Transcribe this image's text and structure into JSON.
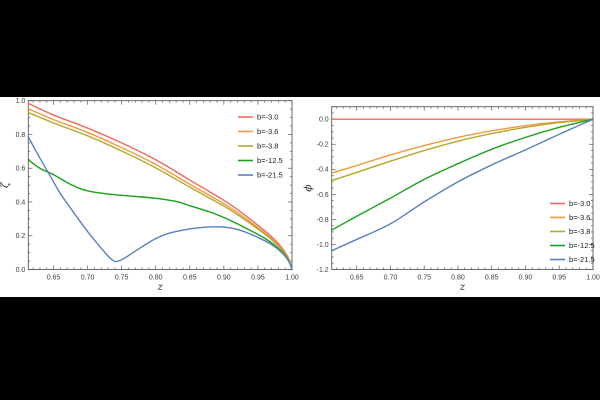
{
  "page": {
    "background_color": "#000000",
    "panel_background_color": "#ffffff"
  },
  "chart_data": [
    {
      "type": "line",
      "title": "",
      "xlabel": "z",
      "ylabel": "ζ",
      "xlim": [
        0.613,
        1.0
      ],
      "ylim": [
        0.0,
        1.0
      ],
      "grid": false,
      "frame": true,
      "xticks": {
        "values": [
          0.65,
          0.7,
          0.75,
          0.8,
          0.85,
          0.9,
          0.95,
          1.0
        ],
        "labels": [
          "0.65",
          "0.70",
          "0.75",
          "0.80",
          "0.85",
          "0.90",
          "0.95",
          "1.00"
        ],
        "minor_step": 0.01
      },
      "yticks": {
        "values": [
          0.0,
          0.2,
          0.4,
          0.6,
          0.8,
          1.0
        ],
        "labels": [
          "0.0",
          "0.2",
          "0.4",
          "0.6",
          "0.8",
          "1.0"
        ],
        "minor_step": 0.05
      },
      "legend_position": "top-right",
      "series": [
        {
          "name": "b=-3.0",
          "color": "#ee6a5f",
          "points": [
            [
              0.613,
              0.985
            ],
            [
              0.65,
              0.915
            ],
            [
              0.7,
              0.838
            ],
            [
              0.75,
              0.75
            ],
            [
              0.8,
              0.65
            ],
            [
              0.85,
              0.53
            ],
            [
              0.9,
              0.41
            ],
            [
              0.92,
              0.355
            ],
            [
              0.95,
              0.262
            ],
            [
              0.97,
              0.195
            ],
            [
              0.985,
              0.13
            ],
            [
              0.995,
              0.065
            ],
            [
              1.0,
              0.0
            ]
          ]
        },
        {
          "name": "b=-3.6",
          "color": "#f2993f",
          "points": [
            [
              0.613,
              0.952
            ],
            [
              0.65,
              0.888
            ],
            [
              0.7,
              0.812
            ],
            [
              0.75,
              0.722
            ],
            [
              0.8,
              0.622
            ],
            [
              0.85,
              0.505
            ],
            [
              0.9,
              0.39
            ],
            [
              0.92,
              0.337
            ],
            [
              0.95,
              0.248
            ],
            [
              0.97,
              0.183
            ],
            [
              0.985,
              0.12
            ],
            [
              0.995,
              0.06
            ],
            [
              1.0,
              0.0
            ]
          ]
        },
        {
          "name": "b=-3.8",
          "color": "#b4a82e",
          "points": [
            [
              0.613,
              0.93
            ],
            [
              0.65,
              0.868
            ],
            [
              0.7,
              0.792
            ],
            [
              0.75,
              0.702
            ],
            [
              0.8,
              0.602
            ],
            [
              0.85,
              0.488
            ],
            [
              0.9,
              0.376
            ],
            [
              0.92,
              0.325
            ],
            [
              0.95,
              0.24
            ],
            [
              0.97,
              0.177
            ],
            [
              0.985,
              0.115
            ],
            [
              0.995,
              0.058
            ],
            [
              1.0,
              0.0
            ]
          ]
        },
        {
          "name": "b=-12.5",
          "color": "#18a018",
          "points": [
            [
              0.613,
              0.65
            ],
            [
              0.63,
              0.6
            ],
            [
              0.65,
              0.562
            ],
            [
              0.67,
              0.515
            ],
            [
              0.69,
              0.478
            ],
            [
              0.71,
              0.458
            ],
            [
              0.74,
              0.443
            ],
            [
              0.77,
              0.433
            ],
            [
              0.8,
              0.422
            ],
            [
              0.83,
              0.403
            ],
            [
              0.85,
              0.378
            ],
            [
              0.88,
              0.34
            ],
            [
              0.9,
              0.308
            ],
            [
              0.92,
              0.27
            ],
            [
              0.95,
              0.208
            ],
            [
              0.97,
              0.158
            ],
            [
              0.985,
              0.105
            ],
            [
              0.995,
              0.052
            ],
            [
              1.0,
              0.0
            ]
          ]
        },
        {
          "name": "b=-21.5",
          "color": "#5c7fc2",
          "points": [
            [
              0.613,
              0.785
            ],
            [
              0.63,
              0.66
            ],
            [
              0.645,
              0.555
            ],
            [
              0.66,
              0.45
            ],
            [
              0.68,
              0.335
            ],
            [
              0.7,
              0.225
            ],
            [
              0.715,
              0.15
            ],
            [
              0.73,
              0.08
            ],
            [
              0.74,
              0.048
            ],
            [
              0.75,
              0.058
            ],
            [
              0.765,
              0.095
            ],
            [
              0.78,
              0.135
            ],
            [
              0.8,
              0.183
            ],
            [
              0.82,
              0.215
            ],
            [
              0.85,
              0.24
            ],
            [
              0.87,
              0.25
            ],
            [
              0.89,
              0.253
            ],
            [
              0.91,
              0.246
            ],
            [
              0.93,
              0.224
            ],
            [
              0.95,
              0.19
            ],
            [
              0.97,
              0.148
            ],
            [
              0.985,
              0.1
            ],
            [
              0.995,
              0.05
            ],
            [
              1.0,
              0.0
            ]
          ]
        }
      ]
    },
    {
      "type": "line",
      "title": "",
      "xlabel": "z",
      "ylabel": "ϕ",
      "xlim": [
        0.613,
        1.0
      ],
      "ylim": [
        -1.2,
        0.1
      ],
      "grid": false,
      "frame": true,
      "xticks": {
        "values": [
          0.65,
          0.7,
          0.75,
          0.8,
          0.85,
          0.9,
          0.95,
          1.0
        ],
        "labels": [
          "0.65",
          "0.70",
          "0.75",
          "0.80",
          "0.85",
          "0.90",
          "0.95",
          "1.00"
        ],
        "minor_step": 0.01
      },
      "yticks": {
        "values": [
          0.0,
          -0.2,
          -0.4,
          -0.6,
          -0.8,
          -1.0,
          -1.2
        ],
        "labels": [
          "0.0",
          "-0.2",
          "-0.4",
          "-0.6",
          "-0.8",
          "-1.0",
          "-1.2"
        ],
        "minor_step": 0.05
      },
      "legend_position": "lower-right",
      "series": [
        {
          "name": "b=-3.0",
          "color": "#ee6a5f",
          "points": [
            [
              0.613,
              0.0
            ],
            [
              0.7,
              0.0
            ],
            [
              0.8,
              0.0
            ],
            [
              0.9,
              0.0
            ],
            [
              1.0,
              0.0
            ]
          ]
        },
        {
          "name": "b=-3.6",
          "color": "#f2993f",
          "points": [
            [
              0.613,
              -0.43
            ],
            [
              0.65,
              -0.37
            ],
            [
              0.7,
              -0.285
            ],
            [
              0.75,
              -0.21
            ],
            [
              0.8,
              -0.145
            ],
            [
              0.85,
              -0.093
            ],
            [
              0.9,
              -0.052
            ],
            [
              0.95,
              -0.021
            ],
            [
              1.0,
              0.0
            ]
          ]
        },
        {
          "name": "b=-3.8",
          "color": "#b4a82e",
          "points": [
            [
              0.613,
              -0.49
            ],
            [
              0.65,
              -0.425
            ],
            [
              0.7,
              -0.335
            ],
            [
              0.75,
              -0.25
            ],
            [
              0.8,
              -0.175
            ],
            [
              0.85,
              -0.115
            ],
            [
              0.9,
              -0.065
            ],
            [
              0.95,
              -0.027
            ],
            [
              1.0,
              0.0
            ]
          ]
        },
        {
          "name": "b=-12.5",
          "color": "#18a018",
          "points": [
            [
              0.613,
              -0.885
            ],
            [
              0.65,
              -0.775
            ],
            [
              0.7,
              -0.63
            ],
            [
              0.75,
              -0.48
            ],
            [
              0.8,
              -0.355
            ],
            [
              0.85,
              -0.24
            ],
            [
              0.9,
              -0.145
            ],
            [
              0.95,
              -0.065
            ],
            [
              1.0,
              0.0
            ]
          ]
        },
        {
          "name": "b=-21.5",
          "color": "#5c7fc2",
          "points": [
            [
              0.613,
              -1.05
            ],
            [
              0.65,
              -0.96
            ],
            [
              0.7,
              -0.835
            ],
            [
              0.75,
              -0.66
            ],
            [
              0.8,
              -0.5
            ],
            [
              0.85,
              -0.365
            ],
            [
              0.9,
              -0.245
            ],
            [
              0.95,
              -0.12
            ],
            [
              1.0,
              0.0
            ]
          ]
        }
      ]
    }
  ]
}
